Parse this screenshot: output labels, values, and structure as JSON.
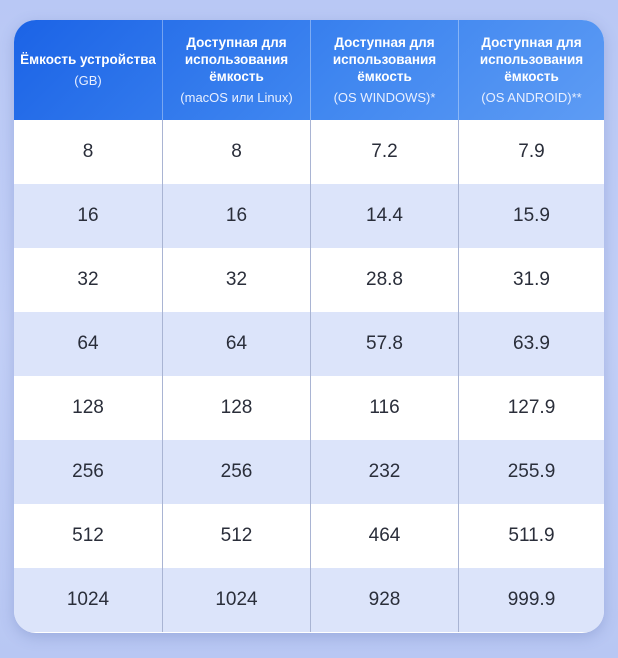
{
  "table": {
    "headers": [
      {
        "title": "Ёмкость устройства",
        "subtitle": "(GB)"
      },
      {
        "title": "Доступная для\nиспользования\nёмкость",
        "subtitle": "(macOS или Linux)"
      },
      {
        "title": "Доступная для\nиспользования\nёмкость",
        "subtitle": "(OS WINDOWS)*"
      },
      {
        "title": "Доступная для\nиспользования\nёмкость",
        "subtitle": "(OS ANDROID)**"
      }
    ],
    "rows": [
      [
        "8",
        "8",
        "7.2",
        "7.9"
      ],
      [
        "16",
        "16",
        "14.4",
        "15.9"
      ],
      [
        "32",
        "32",
        "28.8",
        "31.9"
      ],
      [
        "64",
        "64",
        "57.8",
        "63.9"
      ],
      [
        "128",
        "128",
        "116",
        "127.9"
      ],
      [
        "256",
        "256",
        "232",
        "255.9"
      ],
      [
        "512",
        "512",
        "464",
        "511.9"
      ],
      [
        "1024",
        "1024",
        "928",
        "999.9"
      ]
    ]
  },
  "colors": {
    "header_start": "#1b63e6",
    "header_end": "#5e9cf4",
    "row_alt": "#dce4fa",
    "background": "#bfcdf6"
  }
}
